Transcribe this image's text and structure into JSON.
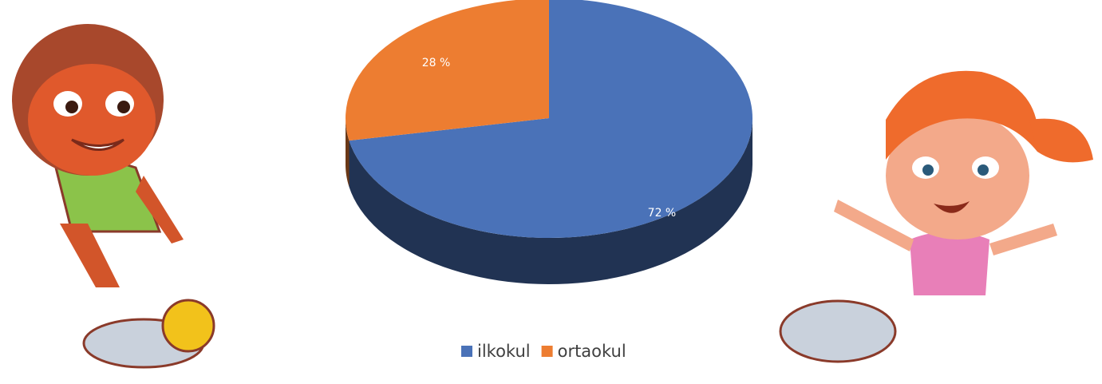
{
  "chart_data": {
    "type": "pie",
    "categories": [
      "ilkokul",
      "ortaokul"
    ],
    "values": [
      72,
      28
    ],
    "value_labels": [
      "72 %",
      "28 %"
    ],
    "colors": [
      "#4a72b8",
      "#ed7d31"
    ],
    "legend": "bottom"
  }
}
